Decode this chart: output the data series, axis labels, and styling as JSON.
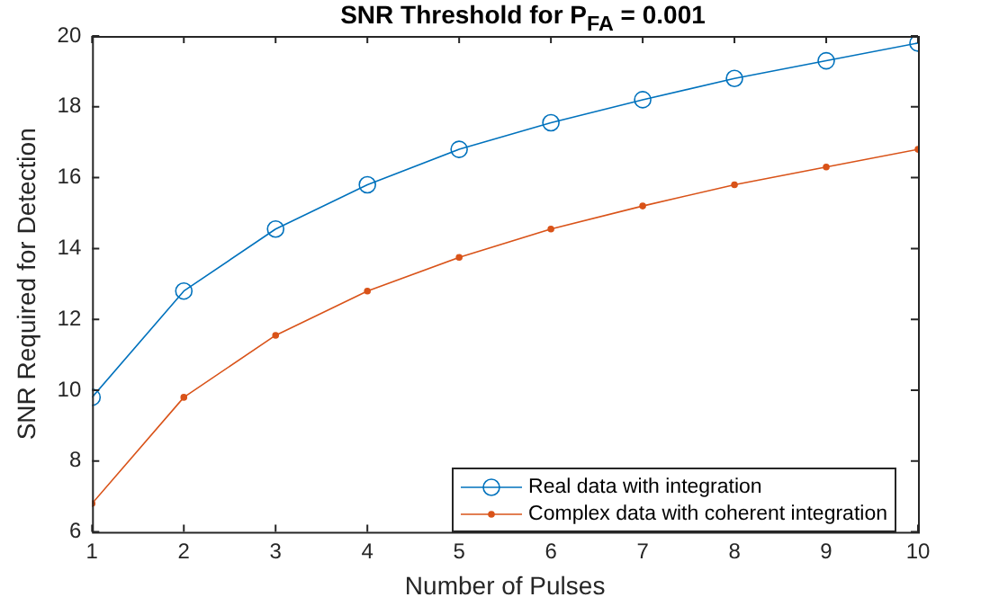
{
  "chart_data": {
    "type": "line",
    "title": "SNR Threshold for P$_{FA}$ = 0.001",
    "xlabel": "Number of Pulses",
    "ylabel": "SNR Required for Detection",
    "x": [
      1,
      2,
      3,
      4,
      5,
      6,
      7,
      8,
      9,
      10
    ],
    "series": [
      {
        "name": "Real data with integration",
        "color": "#0072bd",
        "marker": "circle",
        "values": [
          9.8,
          12.8,
          14.55,
          15.8,
          16.8,
          17.55,
          18.2,
          18.8,
          19.3,
          19.8
        ]
      },
      {
        "name": "Complex data with coherent integration",
        "color": "#d95319",
        "marker": "circle",
        "values": [
          6.8,
          9.8,
          11.55,
          12.8,
          13.75,
          14.55,
          15.2,
          15.8,
          16.3,
          16.8
        ]
      }
    ],
    "xlim": [
      1,
      10
    ],
    "xticks": [
      1,
      2,
      3,
      4,
      5,
      6,
      7,
      8,
      9,
      10
    ],
    "ylim": [
      6,
      20
    ],
    "yticks": [
      6,
      8,
      10,
      12,
      14,
      16,
      18,
      20
    ],
    "grid": false,
    "legend": "bottom right",
    "line_style": "solid"
  }
}
